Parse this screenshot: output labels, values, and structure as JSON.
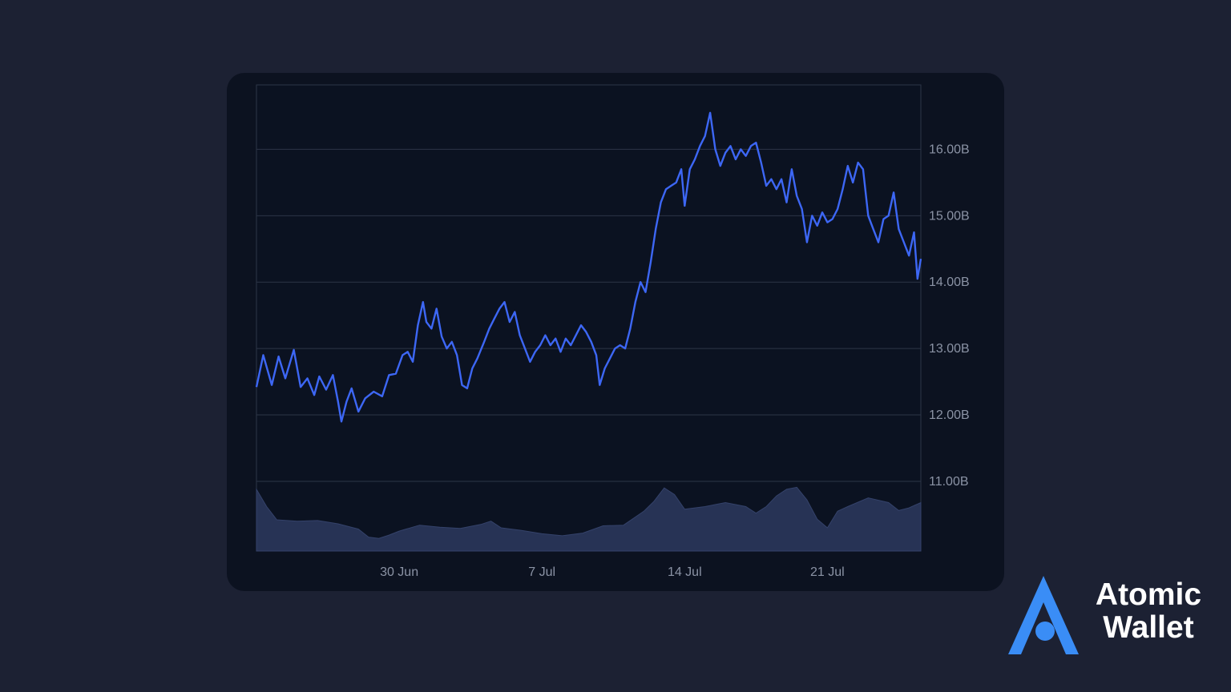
{
  "colors": {
    "background": "#1c2133",
    "panel": "#0c1220",
    "line": "#3d67f5",
    "volume": "#273355",
    "grid": "#2c3547",
    "tick_text": "#8b93a5",
    "brand_accent": "#3a8df6"
  },
  "brand": {
    "icon": "atomic-logo-icon",
    "line1": "Atomic",
    "line2": "Wallet"
  },
  "chart_data": {
    "type": "line",
    "title": "",
    "xlabel": "",
    "ylabel": "",
    "grid": true,
    "legend": "none",
    "y_axis_side": "right",
    "ylim": [
      9.95,
      16.97
    ],
    "xlim": [
      "2025-06-23",
      "2025-07-25T14:00"
    ],
    "y_ticks": [
      {
        "value": 11,
        "label": "11.00B"
      },
      {
        "value": 12,
        "label": "12.00B"
      },
      {
        "value": 13,
        "label": "13.00B"
      },
      {
        "value": 14,
        "label": "14.00B"
      },
      {
        "value": 15,
        "label": "15.00B"
      },
      {
        "value": 16,
        "label": "16.00B"
      }
    ],
    "x_ticks": [
      {
        "value": "2025-06-30",
        "label": "30 Jun"
      },
      {
        "value": "2025-07-07",
        "label": "7 Jul"
      },
      {
        "value": "2025-07-14",
        "label": "14 Jul"
      },
      {
        "value": "2025-07-21",
        "label": "21 Jul"
      }
    ],
    "series": [
      {
        "kind": "line",
        "points": [
          [
            "2025-06-23T00:00",
            12.42
          ],
          [
            "2025-06-23T08:00",
            12.9
          ],
          [
            "2025-06-23T18:00",
            12.45
          ],
          [
            "2025-06-24T02:00",
            12.88
          ],
          [
            "2025-06-24T10:00",
            12.55
          ],
          [
            "2025-06-24T20:00",
            12.98
          ],
          [
            "2025-06-25T04:00",
            12.42
          ],
          [
            "2025-06-25T12:00",
            12.55
          ],
          [
            "2025-06-25T20:00",
            12.3
          ],
          [
            "2025-06-26T02:00",
            12.58
          ],
          [
            "2025-06-26T10:00",
            12.38
          ],
          [
            "2025-06-26T18:00",
            12.6
          ],
          [
            "2025-06-27T00:00",
            12.2
          ],
          [
            "2025-06-27T04:00",
            11.9
          ],
          [
            "2025-06-27T10:00",
            12.2
          ],
          [
            "2025-06-27T16:00",
            12.4
          ],
          [
            "2025-06-28T00:00",
            12.05
          ],
          [
            "2025-06-28T08:00",
            12.25
          ],
          [
            "2025-06-28T18:00",
            12.35
          ],
          [
            "2025-06-29T04:00",
            12.28
          ],
          [
            "2025-06-29T12:00",
            12.6
          ],
          [
            "2025-06-29T20:00",
            12.62
          ],
          [
            "2025-06-30T04:00",
            12.9
          ],
          [
            "2025-06-30T10:00",
            12.95
          ],
          [
            "2025-06-30T16:00",
            12.8
          ],
          [
            "2025-06-30T22:00",
            13.35
          ],
          [
            "2025-07-01T04:00",
            13.7
          ],
          [
            "2025-07-01T08:00",
            13.4
          ],
          [
            "2025-07-01T14:00",
            13.3
          ],
          [
            "2025-07-01T20:00",
            13.6
          ],
          [
            "2025-07-02T02:00",
            13.18
          ],
          [
            "2025-07-02T08:00",
            13.0
          ],
          [
            "2025-07-02T14:00",
            13.1
          ],
          [
            "2025-07-02T20:00",
            12.9
          ],
          [
            "2025-07-03T02:00",
            12.45
          ],
          [
            "2025-07-03T08:00",
            12.4
          ],
          [
            "2025-07-03T14:00",
            12.7
          ],
          [
            "2025-07-03T20:00",
            12.85
          ],
          [
            "2025-07-04T04:00",
            13.1
          ],
          [
            "2025-07-04T10:00",
            13.3
          ],
          [
            "2025-07-04T16:00",
            13.45
          ],
          [
            "2025-07-04T22:00",
            13.6
          ],
          [
            "2025-07-05T04:00",
            13.7
          ],
          [
            "2025-07-05T10:00",
            13.4
          ],
          [
            "2025-07-05T16:00",
            13.55
          ],
          [
            "2025-07-05T22:00",
            13.2
          ],
          [
            "2025-07-06T04:00",
            13.0
          ],
          [
            "2025-07-06T10:00",
            12.8
          ],
          [
            "2025-07-06T16:00",
            12.95
          ],
          [
            "2025-07-06T22:00",
            13.05
          ],
          [
            "2025-07-07T04:00",
            13.2
          ],
          [
            "2025-07-07T10:00",
            13.05
          ],
          [
            "2025-07-07T16:00",
            13.15
          ],
          [
            "2025-07-07T22:00",
            12.95
          ],
          [
            "2025-07-08T04:00",
            13.15
          ],
          [
            "2025-07-08T10:00",
            13.05
          ],
          [
            "2025-07-08T16:00",
            13.2
          ],
          [
            "2025-07-08T22:00",
            13.35
          ],
          [
            "2025-07-09T04:00",
            13.25
          ],
          [
            "2025-07-09T10:00",
            13.1
          ],
          [
            "2025-07-09T16:00",
            12.9
          ],
          [
            "2025-07-09T20:00",
            12.45
          ],
          [
            "2025-07-10T02:00",
            12.7
          ],
          [
            "2025-07-10T08:00",
            12.85
          ],
          [
            "2025-07-10T14:00",
            13.0
          ],
          [
            "2025-07-10T20:00",
            13.05
          ],
          [
            "2025-07-11T02:00",
            13.0
          ],
          [
            "2025-07-11T08:00",
            13.3
          ],
          [
            "2025-07-11T14:00",
            13.7
          ],
          [
            "2025-07-11T20:00",
            14.0
          ],
          [
            "2025-07-12T02:00",
            13.85
          ],
          [
            "2025-07-12T08:00",
            14.3
          ],
          [
            "2025-07-12T14:00",
            14.8
          ],
          [
            "2025-07-12T20:00",
            15.2
          ],
          [
            "2025-07-13T02:00",
            15.4
          ],
          [
            "2025-07-13T08:00",
            15.45
          ],
          [
            "2025-07-13T14:00",
            15.5
          ],
          [
            "2025-07-13T20:00",
            15.7
          ],
          [
            "2025-07-14T00:00",
            15.15
          ],
          [
            "2025-07-14T06:00",
            15.7
          ],
          [
            "2025-07-14T12:00",
            15.85
          ],
          [
            "2025-07-14T18:00",
            16.05
          ],
          [
            "2025-07-15T00:00",
            16.2
          ],
          [
            "2025-07-15T06:00",
            16.55
          ],
          [
            "2025-07-15T12:00",
            16.0
          ],
          [
            "2025-07-15T18:00",
            15.75
          ],
          [
            "2025-07-16T00:00",
            15.95
          ],
          [
            "2025-07-16T06:00",
            16.05
          ],
          [
            "2025-07-16T12:00",
            15.85
          ],
          [
            "2025-07-16T18:00",
            16.0
          ],
          [
            "2025-07-17T00:00",
            15.9
          ],
          [
            "2025-07-17T06:00",
            16.05
          ],
          [
            "2025-07-17T12:00",
            16.1
          ],
          [
            "2025-07-17T18:00",
            15.8
          ],
          [
            "2025-07-18T00:00",
            15.45
          ],
          [
            "2025-07-18T06:00",
            15.55
          ],
          [
            "2025-07-18T12:00",
            15.4
          ],
          [
            "2025-07-18T18:00",
            15.55
          ],
          [
            "2025-07-19T00:00",
            15.2
          ],
          [
            "2025-07-19T06:00",
            15.7
          ],
          [
            "2025-07-19T12:00",
            15.3
          ],
          [
            "2025-07-19T18:00",
            15.1
          ],
          [
            "2025-07-20T00:00",
            14.6
          ],
          [
            "2025-07-20T06:00",
            15.0
          ],
          [
            "2025-07-20T12:00",
            14.85
          ],
          [
            "2025-07-20T18:00",
            15.05
          ],
          [
            "2025-07-21T00:00",
            14.9
          ],
          [
            "2025-07-21T06:00",
            14.95
          ],
          [
            "2025-07-21T12:00",
            15.1
          ],
          [
            "2025-07-21T18:00",
            15.4
          ],
          [
            "2025-07-22T00:00",
            15.75
          ],
          [
            "2025-07-22T06:00",
            15.5
          ],
          [
            "2025-07-22T12:00",
            15.8
          ],
          [
            "2025-07-22T18:00",
            15.7
          ],
          [
            "2025-07-23T00:00",
            15.0
          ],
          [
            "2025-07-23T06:00",
            14.8
          ],
          [
            "2025-07-23T12:00",
            14.6
          ],
          [
            "2025-07-23T18:00",
            14.95
          ],
          [
            "2025-07-24T00:00",
            15.0
          ],
          [
            "2025-07-24T06:00",
            15.35
          ],
          [
            "2025-07-24T12:00",
            14.8
          ],
          [
            "2025-07-24T18:00",
            14.6
          ],
          [
            "2025-07-25T00:00",
            14.4
          ],
          [
            "2025-07-25T06:00",
            14.75
          ],
          [
            "2025-07-25T10:00",
            14.05
          ],
          [
            "2025-07-25T14:00",
            14.35
          ]
        ]
      },
      {
        "kind": "area",
        "points": [
          [
            "2025-06-23T00:00",
            10.88
          ],
          [
            "2025-06-23T12:00",
            10.62
          ],
          [
            "2025-06-24T00:00",
            10.42
          ],
          [
            "2025-06-25T00:00",
            10.4
          ],
          [
            "2025-06-26T00:00",
            10.41
          ],
          [
            "2025-06-27T00:00",
            10.36
          ],
          [
            "2025-06-28T00:00",
            10.28
          ],
          [
            "2025-06-28T12:00",
            10.16
          ],
          [
            "2025-06-29T00:00",
            10.14
          ],
          [
            "2025-06-29T12:00",
            10.19
          ],
          [
            "2025-06-30T00:00",
            10.25
          ],
          [
            "2025-07-01T00:00",
            10.34
          ],
          [
            "2025-07-02T00:00",
            10.31
          ],
          [
            "2025-07-03T00:00",
            10.29
          ],
          [
            "2025-07-04T00:00",
            10.35
          ],
          [
            "2025-07-04T12:00",
            10.4
          ],
          [
            "2025-07-05T00:00",
            10.3
          ],
          [
            "2025-07-06T00:00",
            10.26
          ],
          [
            "2025-07-07T00:00",
            10.21
          ],
          [
            "2025-07-08T00:00",
            10.18
          ],
          [
            "2025-07-09T00:00",
            10.22
          ],
          [
            "2025-07-10T00:00",
            10.33
          ],
          [
            "2025-07-11T00:00",
            10.34
          ],
          [
            "2025-07-12T00:00",
            10.55
          ],
          [
            "2025-07-12T12:00",
            10.7
          ],
          [
            "2025-07-13T00:00",
            10.9
          ],
          [
            "2025-07-13T12:00",
            10.8
          ],
          [
            "2025-07-14T00:00",
            10.58
          ],
          [
            "2025-07-15T00:00",
            10.62
          ],
          [
            "2025-07-16T00:00",
            10.68
          ],
          [
            "2025-07-17T00:00",
            10.62
          ],
          [
            "2025-07-17T12:00",
            10.52
          ],
          [
            "2025-07-18T00:00",
            10.62
          ],
          [
            "2025-07-18T12:00",
            10.78
          ],
          [
            "2025-07-19T00:00",
            10.88
          ],
          [
            "2025-07-19T12:00",
            10.91
          ],
          [
            "2025-07-20T00:00",
            10.72
          ],
          [
            "2025-07-20T12:00",
            10.43
          ],
          [
            "2025-07-21T00:00",
            10.3
          ],
          [
            "2025-07-21T12:00",
            10.55
          ],
          [
            "2025-07-22T00:00",
            10.62
          ],
          [
            "2025-07-23T00:00",
            10.75
          ],
          [
            "2025-07-24T00:00",
            10.68
          ],
          [
            "2025-07-24T12:00",
            10.56
          ],
          [
            "2025-07-25T00:00",
            10.6
          ],
          [
            "2025-07-25T14:00",
            10.68
          ]
        ]
      }
    ]
  }
}
